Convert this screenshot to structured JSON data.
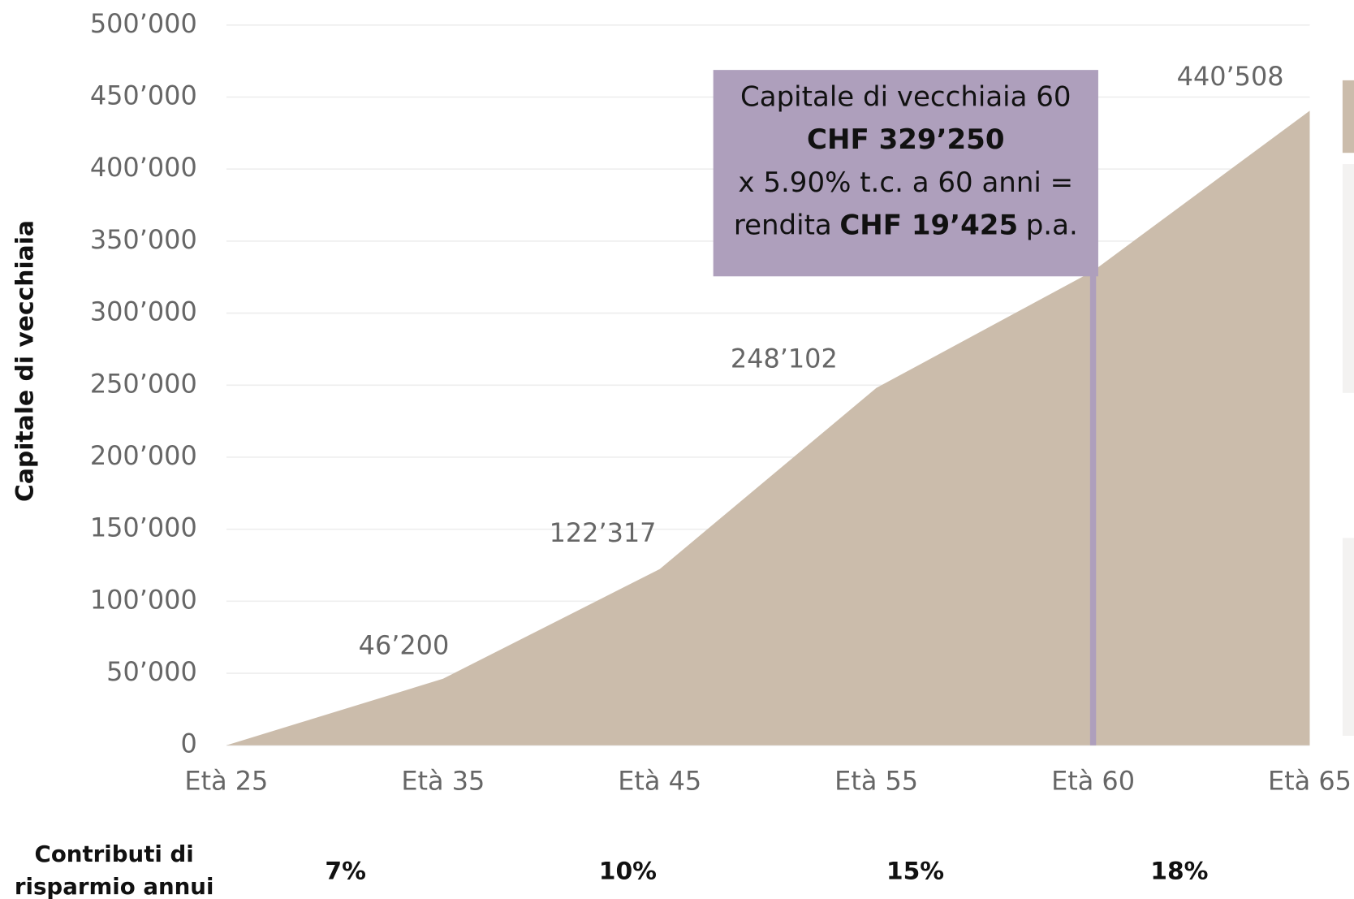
{
  "chart_data": {
    "type": "area",
    "y_axis_label": "Capitale di vecchiaia",
    "categories": [
      "Età 25",
      "Età 35",
      "Età 45",
      "Età 55",
      "Età 60",
      "Età 65"
    ],
    "values": [
      0,
      46200,
      122317,
      248102,
      329250,
      440508
    ],
    "value_labels": [
      null,
      "46’200",
      "122’317",
      "248’102",
      null,
      "440’508"
    ],
    "color": "#cbbcab",
    "ylim": [
      0,
      500000
    ],
    "yticks": [
      0,
      {
        "value": 50000,
        "label": "50’000"
      },
      {
        "value": 100000,
        "label": "100’000"
      },
      {
        "value": 150000,
        "label": "150’000"
      },
      {
        "value": 200000,
        "label": "200’000"
      },
      {
        "value": 250000,
        "label": "250’000"
      },
      {
        "value": 300000,
        "label": "300’000"
      },
      {
        "value": 350000,
        "label": "350’000"
      },
      {
        "value": 400000,
        "label": "400’000"
      },
      {
        "value": 450000,
        "label": "450’000"
      },
      {
        "value": 500000,
        "label": "500’000"
      }
    ],
    "grid": true,
    "annotation": {
      "line1": "Capitale di vecchiaia 60",
      "line2": "CHF 329’250",
      "line3": "x 5.90% t.c. a 60 anni =",
      "line4a": "rendita",
      "line4b": "CHF 19’425",
      "line4c": "p.a.",
      "color": "#ae9fbc"
    },
    "contributions": {
      "label_lines": [
        "Contributi di",
        "risparmio annui"
      ],
      "rates": [
        "7%",
        "10%",
        "15%",
        "18%"
      ]
    }
  }
}
